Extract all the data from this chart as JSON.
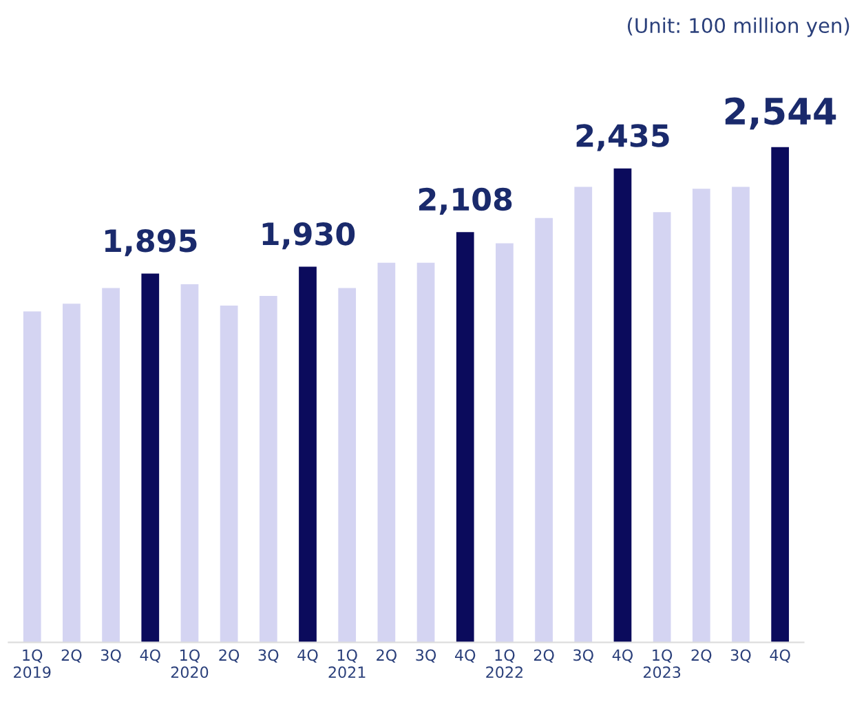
{
  "chart_data": {
    "type": "bar",
    "annotations": [
      "(Unit: 100 million yen)"
    ],
    "categories": [
      "1Q\n2019",
      "2Q",
      "3Q",
      "4Q",
      "1Q\n2020",
      "2Q",
      "3Q",
      "4Q",
      "1Q\n2021",
      "2Q",
      "3Q",
      "4Q",
      "1Q\n2022",
      "2Q",
      "3Q",
      "4Q",
      "1Q\n2023",
      "2Q",
      "3Q",
      "4Q"
    ],
    "values": [
      1700,
      1740,
      1820,
      1895,
      1840,
      1730,
      1780,
      1930,
      1820,
      1950,
      1950,
      2108,
      2050,
      2180,
      2340,
      2435,
      2210,
      2330,
      2340,
      2544
    ],
    "colors": [
      "#d4d4f2",
      "#d4d4f2",
      "#d4d4f2",
      "#0b0b5c",
      "#d4d4f2",
      "#d4d4f2",
      "#d4d4f2",
      "#0b0b5c",
      "#d4d4f2",
      "#d4d4f2",
      "#d4d4f2",
      "#0b0b5c",
      "#d4d4f2",
      "#d4d4f2",
      "#d4d4f2",
      "#0b0b5c",
      "#d4d4f2",
      "#d4d4f2",
      "#d4d4f2",
      "#0b0b5c"
    ],
    "value_labels": [
      null,
      null,
      null,
      "1,895",
      null,
      null,
      null,
      "1,930",
      null,
      null,
      null,
      "2,108",
      null,
      null,
      null,
      "2,435",
      null,
      null,
      null,
      "2,544"
    ],
    "grid": false,
    "legend": false
  }
}
